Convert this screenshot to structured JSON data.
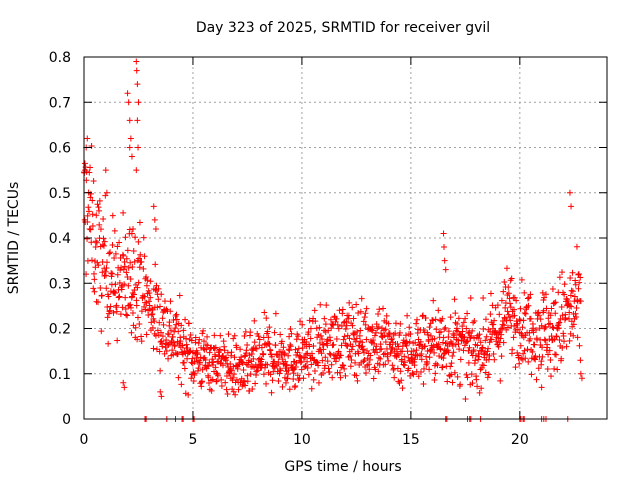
{
  "chart_data": {
    "type": "scatter",
    "title": "Day 323 of 2025, SRMTID for receiver gvil",
    "xlabel": "GPS time / hours",
    "ylabel": "SRMTID / TECUs",
    "xlim": [
      0,
      24
    ],
    "ylim": [
      0,
      0.8
    ],
    "x_ticks": [
      "0",
      "5",
      "10",
      "15",
      "20"
    ],
    "x_tick_values": [
      0,
      5,
      10,
      15,
      20
    ],
    "y_ticks": [
      "0",
      "0.1",
      "0.2",
      "0.3",
      "0.4",
      "0.5",
      "0.6",
      "0.7",
      "0.8"
    ],
    "y_tick_values": [
      0,
      0.1,
      0.2,
      0.3,
      0.4,
      0.5,
      0.6,
      0.7,
      0.8
    ],
    "grid": true,
    "marker": "+",
    "color": "#ff0000",
    "series": [
      {
        "name": "SRMTID",
        "trend_x": [
          0,
          0.2,
          0.5,
          1,
          1.5,
          2,
          2.5,
          3,
          3.5,
          4,
          4.5,
          5,
          5.5,
          6,
          6.5,
          7,
          7.5,
          8,
          8.5,
          9,
          9.5,
          10,
          10.5,
          11,
          11.5,
          12,
          12.5,
          13,
          13.5,
          14,
          14.5,
          15,
          15.5,
          16,
          16.5,
          17,
          17.5,
          18,
          18.5,
          19,
          19.5,
          20,
          20.5,
          21,
          21.5,
          22,
          22.5,
          22.8
        ],
        "trend_y": [
          0.45,
          0.48,
          0.38,
          0.33,
          0.3,
          0.3,
          0.32,
          0.25,
          0.22,
          0.19,
          0.16,
          0.14,
          0.13,
          0.13,
          0.12,
          0.11,
          0.11,
          0.13,
          0.14,
          0.14,
          0.13,
          0.14,
          0.15,
          0.16,
          0.17,
          0.17,
          0.18,
          0.17,
          0.18,
          0.16,
          0.15,
          0.15,
          0.16,
          0.17,
          0.16,
          0.17,
          0.15,
          0.15,
          0.16,
          0.19,
          0.24,
          0.21,
          0.2,
          0.2,
          0.19,
          0.22,
          0.24,
          0.22
        ],
        "spread": [
          0.09,
          0.08,
          0.07,
          0.07,
          0.06,
          0.07,
          0.06,
          0.05,
          0.05,
          0.04,
          0.04,
          0.035,
          0.035,
          0.03,
          0.03,
          0.035,
          0.035,
          0.04,
          0.04,
          0.035,
          0.035,
          0.035,
          0.035,
          0.04,
          0.04,
          0.04,
          0.04,
          0.04,
          0.045,
          0.04,
          0.04,
          0.04,
          0.04,
          0.04,
          0.045,
          0.045,
          0.04,
          0.04,
          0.04,
          0.045,
          0.05,
          0.04,
          0.045,
          0.05,
          0.05,
          0.055,
          0.06,
          0.06
        ],
        "outliers": [
          {
            "x": 0.15,
            "y": 0.62
          },
          {
            "x": 0.1,
            "y": 0.6
          },
          {
            "x": 0.05,
            "y": 0.55
          },
          {
            "x": 1.0,
            "y": 0.55
          },
          {
            "x": 1.05,
            "y": 0.5
          },
          {
            "x": 2.0,
            "y": 0.72
          },
          {
            "x": 2.05,
            "y": 0.7
          },
          {
            "x": 2.1,
            "y": 0.66
          },
          {
            "x": 2.15,
            "y": 0.62
          },
          {
            "x": 2.1,
            "y": 0.6
          },
          {
            "x": 2.2,
            "y": 0.58
          },
          {
            "x": 2.4,
            "y": 0.79
          },
          {
            "x": 2.42,
            "y": 0.77
          },
          {
            "x": 2.45,
            "y": 0.74
          },
          {
            "x": 2.5,
            "y": 0.7
          },
          {
            "x": 2.45,
            "y": 0.66
          },
          {
            "x": 2.48,
            "y": 0.6
          },
          {
            "x": 2.4,
            "y": 0.55
          },
          {
            "x": 2.2,
            "y": 0.41
          },
          {
            "x": 2.25,
            "y": 0.42
          },
          {
            "x": 3.2,
            "y": 0.47
          },
          {
            "x": 3.25,
            "y": 0.44
          },
          {
            "x": 3.3,
            "y": 0.42
          },
          {
            "x": 16.5,
            "y": 0.41
          },
          {
            "x": 16.52,
            "y": 0.38
          },
          {
            "x": 16.55,
            "y": 0.35
          },
          {
            "x": 16.6,
            "y": 0.33
          },
          {
            "x": 22.3,
            "y": 0.5
          },
          {
            "x": 22.35,
            "y": 0.47
          },
          {
            "x": 1.8,
            "y": 0.08
          },
          {
            "x": 1.85,
            "y": 0.07
          },
          {
            "x": 3.5,
            "y": 0.06
          },
          {
            "x": 3.55,
            "y": 0.05
          },
          {
            "x": 21.0,
            "y": 0.07
          },
          {
            "x": 22.8,
            "y": 0.1
          },
          {
            "x": 22.85,
            "y": 0.09
          }
        ],
        "zero_points_x": [
          2.8,
          2.85,
          3.8,
          4.2,
          4.5,
          4.55,
          5.0,
          5.05,
          16.6,
          16.65,
          17.6,
          17.7,
          17.75,
          18.2,
          20.0,
          20.05,
          20.15,
          20.2,
          21.0,
          21.1,
          21.2,
          22.2
        ]
      }
    ]
  }
}
